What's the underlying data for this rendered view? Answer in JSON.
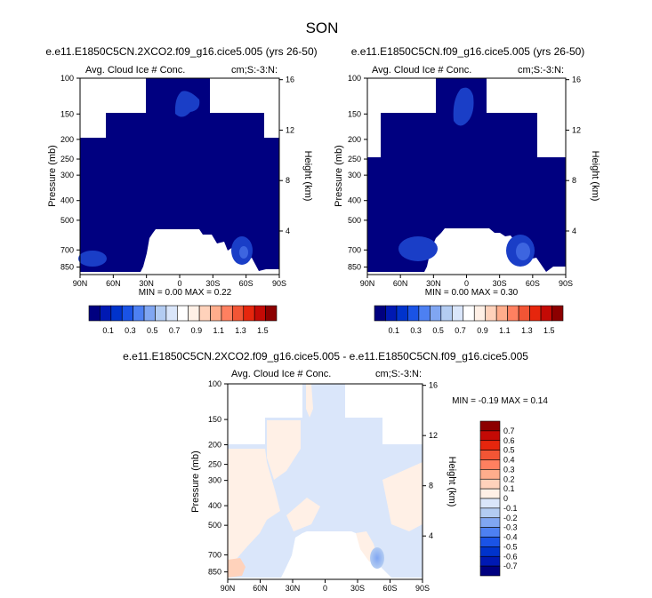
{
  "figure": {
    "title": "SON"
  },
  "colors": {
    "pos_scale": [
      "#000080",
      "#0019b3",
      "#0033cc",
      "#1a53e6",
      "#4d80f2",
      "#80a6f2",
      "#b3ccf2",
      "#dae6fa",
      "#ffffff",
      "#fff0e6",
      "#ffd2bb",
      "#ffad8c",
      "#ff8060",
      "#f25535",
      "#e6260d",
      "#c40a05",
      "#8c0000"
    ],
    "diff_scale": [
      "#000080",
      "#0019b3",
      "#0033cc",
      "#1a53e6",
      "#4d80f2",
      "#80a6f2",
      "#b3ccf2",
      "#dae6fa",
      "#fff0e6",
      "#ffd2bb",
      "#ffad8c",
      "#ff8060",
      "#f25535",
      "#e6260d",
      "#c40a05",
      "#8c0000"
    ]
  },
  "chart_data": [
    {
      "type": "heatmap",
      "title": "e.e11.E1850C5CN.2XCO2.f09_g16.cice5.005 (yrs 26-50)",
      "left_label": "Avg. Cloud Ice # Conc.",
      "right_label": "cm;S:-3:N:",
      "ylabel": "Pressure (mb)",
      "ylabel_right": "Height (km)",
      "xticks": [
        "90N",
        "60N",
        "30N",
        "0",
        "30S",
        "60S",
        "90S"
      ],
      "yticks": [
        "100",
        "150",
        "200",
        "250",
        "300",
        "400",
        "500",
        "700",
        "850"
      ],
      "yticks_right": [
        "16",
        "12",
        "8",
        "4"
      ],
      "stats": "MIN = 0.00 MAX = 0.22",
      "min": 0.0,
      "max": 0.22
    },
    {
      "type": "heatmap",
      "title": "e.e11.E1850C5CN.f09_g16.cice5.005 (yrs 26-50)",
      "left_label": "Avg. Cloud Ice # Conc.",
      "right_label": "cm;S:-3:N:",
      "ylabel": "Pressure (mb)",
      "ylabel_right": "Height (km)",
      "xticks": [
        "90N",
        "60N",
        "30N",
        "0",
        "30S",
        "60S",
        "90S"
      ],
      "yticks": [
        "100",
        "150",
        "200",
        "250",
        "300",
        "400",
        "500",
        "700",
        "850"
      ],
      "yticks_right": [
        "16",
        "12",
        "8",
        "4"
      ],
      "stats": "MIN = 0.00 MAX = 0.30",
      "min": 0.0,
      "max": 0.3
    },
    {
      "type": "heatmap",
      "title": "e.e11.E1850C5CN.2XCO2.f09_g16.cice5.005 - e.e11.E1850C5CN.f09_g16.cice5.005",
      "left_label": "Avg. Cloud Ice # Conc.",
      "right_label": "cm;S:-3:N:",
      "ylabel": "Pressure (mb)",
      "ylabel_right": "Height (km)",
      "xticks": [
        "90N",
        "60N",
        "30N",
        "0",
        "30S",
        "60S",
        "90S"
      ],
      "yticks": [
        "100",
        "150",
        "200",
        "250",
        "300",
        "400",
        "500",
        "700",
        "850"
      ],
      "yticks_right": [
        "16",
        "12",
        "8",
        "4"
      ],
      "stats": "MIN = -0.19 MAX = 0.14",
      "min": -0.19,
      "max": 0.14
    }
  ],
  "colorbar_top": {
    "labels": [
      "0.1",
      "0.3",
      "0.5",
      "0.7",
      "0.9",
      "1.1",
      "1.3",
      "1.5"
    ]
  },
  "colorbar_diff": {
    "labels": [
      "0.7",
      "0.6",
      "0.5",
      "0.4",
      "0.3",
      "0.2",
      "0.1",
      "0",
      "-0.1",
      "-0.2",
      "-0.3",
      "-0.4",
      "-0.5",
      "-0.6",
      "-0.7"
    ]
  }
}
